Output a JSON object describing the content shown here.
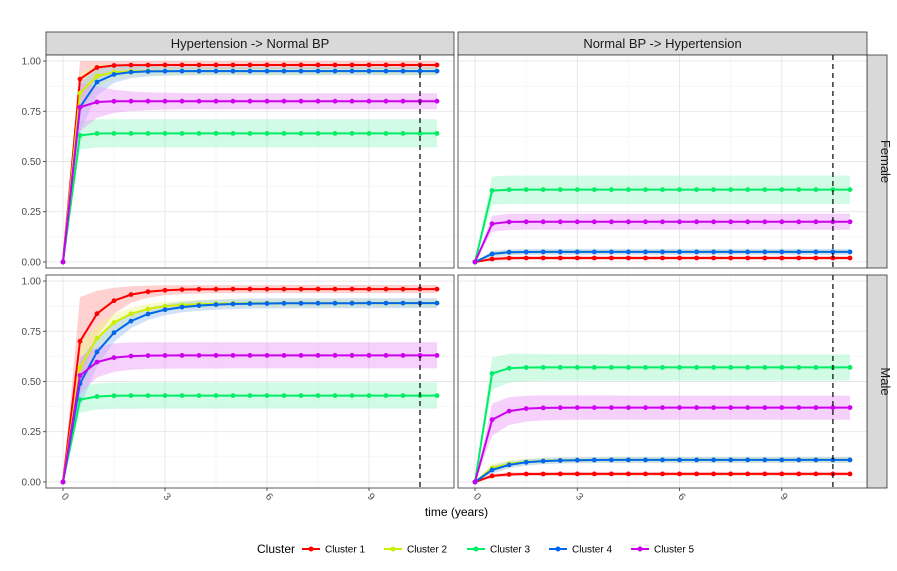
{
  "chart_data": {
    "type": "line",
    "facet_cols": [
      "Hypertension -> Normal BP",
      "Normal BP -> Hypertension"
    ],
    "facet_rows": [
      "Female",
      "Male"
    ],
    "xlabel": "time (years)",
    "ylabel": "",
    "xlim": [
      -0.5,
      11.5
    ],
    "ylim": [
      -0.03,
      1.03
    ],
    "x_ticks": [
      0,
      3,
      6,
      9
    ],
    "x_tick_labels": [
      "0",
      "3",
      "6",
      "9"
    ],
    "y_ticks": [
      0,
      0.25,
      0.5,
      0.75,
      1.0
    ],
    "y_tick_labels": [
      "0.00",
      "0.25",
      "0.50",
      "0.75",
      "1.00"
    ],
    "vline_x": 10.5,
    "x": [
      0,
      0.5,
      1.0,
      1.5,
      2.0,
      2.5,
      3.0,
      3.5,
      4.0,
      4.5,
      5.0,
      5.5,
      6.0,
      6.5,
      7.0,
      7.5,
      8.0,
      8.5,
      9.0,
      9.5,
      10.0,
      10.5,
      11.0
    ],
    "legend_title": "Cluster",
    "legend_position": "bottom",
    "series_names": [
      "Cluster 1",
      "Cluster 2",
      "Cluster 3",
      "Cluster 4",
      "Cluster 5"
    ],
    "colors": [
      "#ff0000",
      "#ccee00",
      "#00ee66",
      "#0066ee",
      "#cc00ee"
    ],
    "band_colors": [
      "#ff9999",
      "#eef788",
      "#99f7c4",
      "#99c2f7",
      "#eb99f7"
    ],
    "panels": [
      {
        "col": 0,
        "row": 0,
        "series": [
          {
            "name": "Cluster 1",
            "plateau": 0.98,
            "start": 0.91,
            "rate": 3.5,
            "band": 0.02,
            "band_early": 0.1
          },
          {
            "name": "Cluster 2",
            "plateau": 0.95,
            "start": 0.84,
            "rate": 3.0,
            "band": 0.02,
            "band_early": 0.1
          },
          {
            "name": "Cluster 3",
            "plateau": 0.64,
            "start": 0.63,
            "rate": 6.0,
            "band": 0.07,
            "band_early": 0.07
          },
          {
            "name": "Cluster 4",
            "plateau": 0.95,
            "start": 0.77,
            "rate": 2.4,
            "band": 0.02,
            "band_early": 0.12
          },
          {
            "name": "Cluster 5",
            "plateau": 0.8,
            "start": 0.77,
            "rate": 4.0,
            "band": 0.04,
            "band_early": 0.12
          }
        ]
      },
      {
        "col": 1,
        "row": 0,
        "series": [
          {
            "name": "Cluster 1",
            "plateau": 0.02,
            "start": 0.015,
            "rate": 4.0,
            "band": 0.01,
            "band_early": 0.01
          },
          {
            "name": "Cluster 2",
            "plateau": 0.05,
            "start": 0.04,
            "rate": 4.0,
            "band": 0.01,
            "band_early": 0.01
          },
          {
            "name": "Cluster 3",
            "plateau": 0.36,
            "start": 0.355,
            "rate": 6.0,
            "band": 0.07,
            "band_early": 0.07
          },
          {
            "name": "Cluster 4",
            "plateau": 0.05,
            "start": 0.04,
            "rate": 4.0,
            "band": 0.015,
            "band_early": 0.015
          },
          {
            "name": "Cluster 5",
            "plateau": 0.2,
            "start": 0.19,
            "rate": 5.0,
            "band": 0.04,
            "band_early": 0.04
          }
        ]
      },
      {
        "col": 0,
        "row": 1,
        "series": [
          {
            "name": "Cluster 1",
            "plateau": 0.96,
            "start": 0.7,
            "rate": 1.5,
            "band": 0.02,
            "band_early": 0.22
          },
          {
            "name": "Cluster 2",
            "plateau": 0.89,
            "start": 0.57,
            "rate": 1.2,
            "band": 0.02,
            "band_early": 0.12
          },
          {
            "name": "Cluster 3",
            "plateau": 0.43,
            "start": 0.41,
            "rate": 3.0,
            "band": 0.065,
            "band_early": 0.065
          },
          {
            "name": "Cluster 4",
            "plateau": 0.89,
            "start": 0.49,
            "rate": 1.0,
            "band": 0.025,
            "band_early": 0.12
          },
          {
            "name": "Cluster 5",
            "plateau": 0.63,
            "start": 0.53,
            "rate": 2.2,
            "band": 0.065,
            "band_early": 0.09
          }
        ]
      },
      {
        "col": 1,
        "row": 1,
        "series": [
          {
            "name": "Cluster 1",
            "plateau": 0.04,
            "start": 0.03,
            "rate": 3.0,
            "band": 0.01,
            "band_early": 0.01
          },
          {
            "name": "Cluster 2",
            "plateau": 0.11,
            "start": 0.07,
            "rate": 1.4,
            "band": 0.015,
            "band_early": 0.02
          },
          {
            "name": "Cluster 3",
            "plateau": 0.57,
            "start": 0.54,
            "rate": 4.0,
            "band": 0.065,
            "band_early": 0.08
          },
          {
            "name": "Cluster 4",
            "plateau": 0.11,
            "start": 0.06,
            "rate": 1.4,
            "band": 0.015,
            "band_early": 0.02
          },
          {
            "name": "Cluster 5",
            "plateau": 0.37,
            "start": 0.31,
            "rate": 2.5,
            "band": 0.06,
            "band_early": 0.08
          }
        ]
      }
    ]
  }
}
